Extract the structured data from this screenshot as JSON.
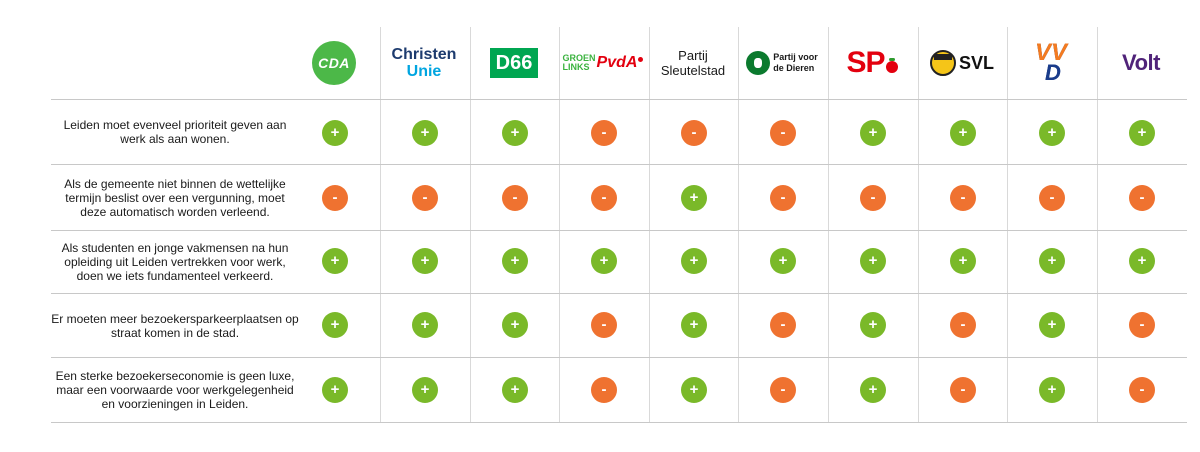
{
  "parties": [
    {
      "name": "CDA",
      "icon": "cda-logo-icon"
    },
    {
      "name": "ChristenUnie",
      "line1": "Christen",
      "line2": "Unie",
      "icon": "christenunie-logo-icon"
    },
    {
      "name": "D66",
      "icon": "d66-logo-icon"
    },
    {
      "name": "GroenLinks PvdA",
      "gl1": "GROEN",
      "gl2": "LINKS",
      "pv": "PvdA",
      "icon": "groenlinks-pvda-logo-icon"
    },
    {
      "name": "Partij Sleutelstad",
      "line1": "Partij",
      "line2": "Sleutelstad",
      "icon": "partij-sleutelstad-logo-icon"
    },
    {
      "name": "Partij voor de Dieren",
      "line1": "Partij voor",
      "line2": "de Dieren",
      "icon": "partij-voor-de-dieren-logo-icon"
    },
    {
      "name": "SP",
      "icon": "sp-logo-icon"
    },
    {
      "name": "SVL",
      "icon": "svl-logo-icon"
    },
    {
      "name": "VVD",
      "v1": "VV",
      "v2": "D",
      "icon": "vvd-logo-icon"
    },
    {
      "name": "Volt",
      "icon": "volt-logo-icon"
    }
  ],
  "symbols": {
    "positive": "+",
    "negative": "-"
  },
  "colors": {
    "positive": "#7ab929",
    "negative": "#ef7230"
  },
  "statements": [
    {
      "text": "Leiden moet evenveel prioriteit geven aan werk als aan wonen.",
      "answers": [
        "positive",
        "positive",
        "positive",
        "negative",
        "negative",
        "negative",
        "positive",
        "positive",
        "positive",
        "positive"
      ]
    },
    {
      "text": "Als de gemeente niet binnen de wettelijke termijn beslist over een vergunning, moet deze automatisch worden verleend.",
      "answers": [
        "negative",
        "negative",
        "negative",
        "negative",
        "positive",
        "negative",
        "negative",
        "negative",
        "negative",
        "negative"
      ]
    },
    {
      "text": "Als studenten en jonge vakmensen na hun opleiding uit Leiden vertrekken voor werk, doen we iets fundamenteel verkeerd.",
      "answers": [
        "positive",
        "positive",
        "positive",
        "positive",
        "positive",
        "positive",
        "positive",
        "positive",
        "positive",
        "positive"
      ]
    },
    {
      "text": "Er moeten meer bezoekersparkeerplaatsen op straat komen in de stad.",
      "answers": [
        "positive",
        "positive",
        "positive",
        "negative",
        "positive",
        "negative",
        "positive",
        "negative",
        "positive",
        "negative"
      ]
    },
    {
      "text": "Een sterke bezoekerseconomie is geen luxe, maar een voorwaarde voor werkgelegenheid en voorzieningen in Leiden.",
      "answers": [
        "positive",
        "positive",
        "positive",
        "negative",
        "positive",
        "negative",
        "positive",
        "negative",
        "positive",
        "negative"
      ]
    }
  ]
}
